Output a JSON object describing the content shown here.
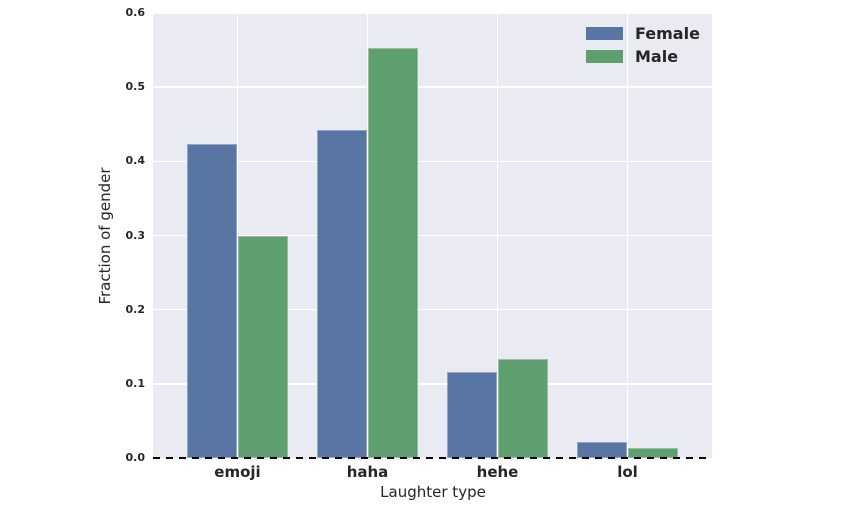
{
  "chart_data": {
    "type": "bar",
    "title": "",
    "categories": [
      "emoji",
      "haha",
      "hehe",
      "lol"
    ],
    "series": [
      {
        "name": "Female",
        "color": "#5975a4",
        "values": [
          0.423,
          0.442,
          0.116,
          0.021
        ]
      },
      {
        "name": "Male",
        "color": "#5f9e6e",
        "values": [
          0.3,
          0.553,
          0.133,
          0.014
        ]
      }
    ],
    "xlabel": "Laughter type",
    "ylabel": "Fraction of gender",
    "ylim": [
      0.0,
      0.6
    ],
    "xlim": [
      -0.65,
      3.65
    ],
    "yticks": [
      "0.0",
      "0.1",
      "0.2",
      "0.3",
      "0.4",
      "0.5",
      "0.6"
    ],
    "grid": true,
    "plot_bg": "#eaeaf2",
    "grid_color": "#ffffff",
    "baseline_dashed": true,
    "legend_position": "upper right",
    "bar_unit_width": 0.385
  }
}
